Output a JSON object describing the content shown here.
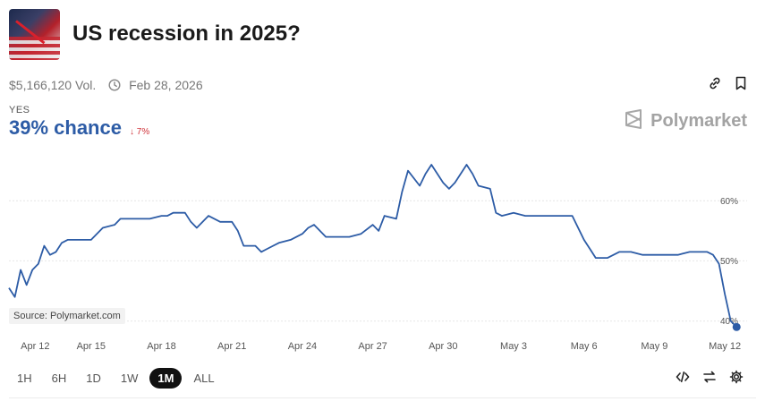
{
  "market": {
    "title": "US recession in 2025?",
    "volume": "$5,166,120 Vol.",
    "end_date": "Feb 28, 2026",
    "outcome_label": "YES",
    "chance": "39% chance",
    "change": "7%",
    "brand": "Polymarket",
    "source": "Source: Polymarket.com"
  },
  "icons": {
    "clock": "clock-icon",
    "link": "link-icon",
    "bookmark": "bookmark-icon",
    "logo": "polymarket-logo-icon",
    "embed": "code-icon",
    "swap": "swap-icon",
    "settings": "gear-icon",
    "change_arrow": "arrow-down-icon"
  },
  "colors": {
    "line": "#2d5ca6",
    "down": "#d0343b",
    "grid": "#e6e6e6"
  },
  "time_ranges": [
    {
      "label": "1H",
      "active": false
    },
    {
      "label": "6H",
      "active": false
    },
    {
      "label": "1D",
      "active": false
    },
    {
      "label": "1W",
      "active": false
    },
    {
      "label": "1M",
      "active": true
    },
    {
      "label": "ALL",
      "active": false
    }
  ],
  "chart_data": {
    "type": "line",
    "title": "",
    "xlabel": "",
    "ylabel": "",
    "x_ticks": [
      "Apr 12",
      "Apr 15",
      "Apr 18",
      "Apr 21",
      "Apr 24",
      "Apr 27",
      "Apr 30",
      "May 3",
      "May 6",
      "May 9",
      "May 12"
    ],
    "y_ticks": [
      "40%",
      "50%",
      "60%"
    ],
    "ylim": [
      38,
      66
    ],
    "grid": "horizontal",
    "series": [
      {
        "x": [
          "Apr 11 12:00",
          "Apr 11 18:00",
          "Apr 12 00:00",
          "Apr 12 06:00",
          "Apr 12 12:00",
          "Apr 12 18:00",
          "Apr 13 00:00",
          "Apr 13 06:00",
          "Apr 13 12:00",
          "Apr 13 18:00",
          "Apr 14 00:00",
          "Apr 14 06:00",
          "Apr 14 12:00",
          "Apr 15 00:00",
          "Apr 15 12:00",
          "Apr 16 00:00",
          "Apr 16 06:00",
          "Apr 16 12:00",
          "Apr 17 00:00",
          "Apr 17 12:00",
          "Apr 18 00:00",
          "Apr 18 06:00",
          "Apr 18 12:00",
          "Apr 19 00:00",
          "Apr 19 06:00",
          "Apr 19 12:00",
          "Apr 20 00:00",
          "Apr 20 12:00",
          "Apr 21 00:00",
          "Apr 21 06:00",
          "Apr 21 12:00",
          "Apr 22 00:00",
          "Apr 22 06:00",
          "Apr 22 12:00",
          "Apr 23 00:00",
          "Apr 23 12:00",
          "Apr 24 00:00",
          "Apr 24 06:00",
          "Apr 24 12:00",
          "Apr 25 00:00",
          "Apr 25 12:00",
          "Apr 26 00:00",
          "Apr 26 12:00",
          "Apr 27 00:00",
          "Apr 27 06:00",
          "Apr 27 12:00",
          "Apr 28 00:00",
          "Apr 28 06:00",
          "Apr 28 12:00",
          "Apr 29 00:00",
          "Apr 29 06:00",
          "Apr 29 12:00",
          "Apr 30 00:00",
          "Apr 30 06:00",
          "Apr 30 12:00",
          "May 1 00:00",
          "May 1 06:00",
          "May 1 12:00",
          "May 2 00:00",
          "May 2 06:00",
          "May 2 12:00",
          "May 3 00:00",
          "May 3 12:00",
          "May 4 00:00",
          "May 4 12:00",
          "May 5 00:00",
          "May 5 06:00",
          "May 5 12:00",
          "May 6 00:00",
          "May 6 06:00",
          "May 6 12:00",
          "May 7 00:00",
          "May 7 12:00",
          "May 8 00:00",
          "May 8 12:00",
          "May 9 00:00",
          "May 9 12:00",
          "May 10 00:00",
          "May 10 12:00",
          "May 11 00:00",
          "May 11 06:00",
          "May 11 12:00",
          "May 11 18:00",
          "May 12 00:00",
          "May 12 06:00",
          "May 12 12:00"
        ],
        "y": [
          45.5,
          44.0,
          48.5,
          46.0,
          48.5,
          49.5,
          52.5,
          51.0,
          51.5,
          53.0,
          53.5,
          53.5,
          53.5,
          53.5,
          55.5,
          56.0,
          57.0,
          57.0,
          57.0,
          57.0,
          57.5,
          57.5,
          58.0,
          58.0,
          56.5,
          55.5,
          57.5,
          56.5,
          56.5,
          55.0,
          52.5,
          52.5,
          51.5,
          52.0,
          53.0,
          53.5,
          54.5,
          55.5,
          56.0,
          54.0,
          54.0,
          54.0,
          54.5,
          56.0,
          55.0,
          57.5,
          57.0,
          61.5,
          65.0,
          62.5,
          64.5,
          66.0,
          63.0,
          62.0,
          63.0,
          66.0,
          64.5,
          62.5,
          62.0,
          58.0,
          57.5,
          58.0,
          57.5,
          57.5,
          57.5,
          57.5,
          57.5,
          57.5,
          53.5,
          52.0,
          50.5,
          50.5,
          51.5,
          51.5,
          51.0,
          51.0,
          51.0,
          51.0,
          51.5,
          51.5,
          51.5,
          51.0,
          49.5,
          44.5,
          40.0,
          39.0
        ]
      }
    ]
  }
}
